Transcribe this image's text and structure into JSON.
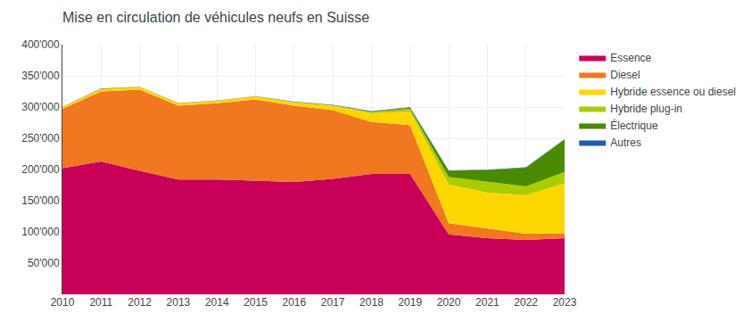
{
  "chart_data": {
    "type": "area",
    "stacked": true,
    "title": "Mise en circulation de véhicules neufs en Suisse",
    "x": [
      2010,
      2011,
      2012,
      2013,
      2014,
      2015,
      2016,
      2017,
      2018,
      2019,
      2020,
      2021,
      2022,
      2023
    ],
    "series": [
      {
        "name": "Essence",
        "color": "#C8005A",
        "values": [
          202000,
          213000,
          198000,
          184000,
          184000,
          182000,
          180000,
          185000,
          193000,
          193000,
          96000,
          90000,
          87000,
          90000
        ]
      },
      {
        "name": "Diesel",
        "color": "#F07820",
        "values": [
          95000,
          112000,
          130000,
          118000,
          122000,
          130000,
          122000,
          110000,
          83000,
          78000,
          18000,
          15000,
          10000,
          8000
        ]
      },
      {
        "name": "Hybride essence ou diesel",
        "color": "#FFD700",
        "values": [
          3000,
          4000,
          4000,
          4000,
          4000,
          5000,
          6000,
          7000,
          14000,
          22000,
          62000,
          58000,
          62000,
          80000
        ]
      },
      {
        "name": "Hybride plug-in",
        "color": "#AACC00",
        "values": [
          0,
          0,
          0,
          0,
          0,
          0,
          0,
          1000,
          2000,
          4000,
          12000,
          18000,
          14000,
          18000
        ]
      },
      {
        "name": "Électrique",
        "color": "#4A8A00",
        "values": [
          0,
          0,
          0,
          0,
          0,
          0,
          0,
          0,
          1000,
          2000,
          10000,
          18000,
          30000,
          52000
        ]
      },
      {
        "name": "Autres",
        "color": "#1E5CB3",
        "values": [
          500,
          500,
          500,
          500,
          500,
          500,
          500,
          500,
          500,
          500,
          500,
          500,
          500,
          500
        ]
      }
    ],
    "xlim": [
      2010,
      2023
    ],
    "xticks": [
      2010,
      2011,
      2012,
      2013,
      2014,
      2015,
      2016,
      2017,
      2018,
      2019,
      2020,
      2021,
      2022,
      2023
    ],
    "ylim": [
      0,
      400000
    ],
    "yticks": [
      {
        "value": 50000,
        "label": "50'000"
      },
      {
        "value": 100000,
        "label": "100'000"
      },
      {
        "value": 150000,
        "label": "150'000"
      },
      {
        "value": 200000,
        "label": "200'000"
      },
      {
        "value": 250000,
        "label": "250'000"
      },
      {
        "value": 300000,
        "label": "300'000"
      },
      {
        "value": 350000,
        "label": "350'000"
      },
      {
        "value": 400000,
        "label": "400'000"
      }
    ],
    "grid": true,
    "legend": "right"
  }
}
